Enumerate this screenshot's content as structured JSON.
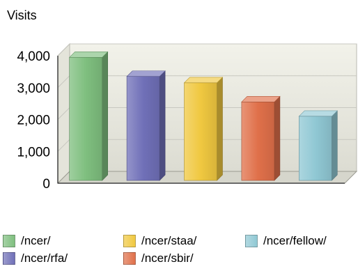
{
  "chart_data": {
    "type": "bar",
    "ylabel": "Visits",
    "categories": [
      "/ncer/",
      "/ncer/rfa/",
      "/ncer/staa/",
      "/ncer/sbir/",
      "/ncer/fellow/"
    ],
    "values": [
      3950,
      3350,
      3150,
      2550,
      2100
    ],
    "ylim": [
      0,
      4000
    ],
    "yticks": [
      "0",
      "1,000",
      "2,000",
      "3,000",
      "4,000"
    ],
    "grid": true,
    "legend_position": "bottom",
    "colors": [
      "#7fbf7f",
      "#7070b8",
      "#f0c840",
      "#e0704a",
      "#90c8d4"
    ]
  }
}
